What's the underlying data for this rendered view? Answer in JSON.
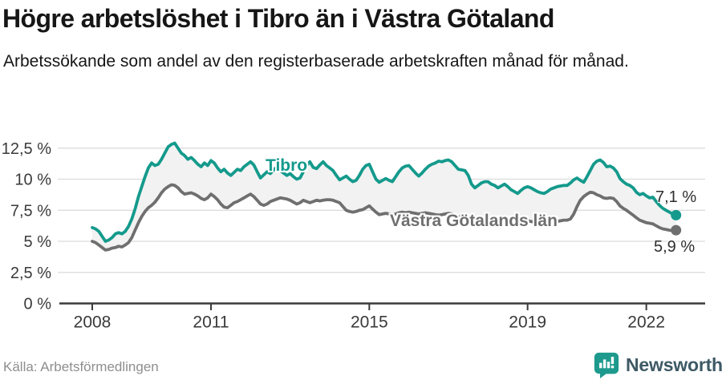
{
  "title": "Högre arbetslöshet i Tibro än i Västra Götaland",
  "subtitle": "Arbetssökande som andel av den registerbaserade arbetskraften månad för månad.",
  "source": "Källa: Arbetsförmedlingen",
  "branding": {
    "name": "Newsworthy",
    "icon": "bar-chart-speech-bubble"
  },
  "colors": {
    "accent_teal": "#149a8c",
    "line_gray": "#6f6f6f",
    "band_fill": "#f2f2f2",
    "grid": "#dcdcdc",
    "axis": "#3a3a3a",
    "text_dark": "#161616",
    "text_muted": "#8e8e8e",
    "brand_dark": "#3d5965"
  },
  "chart_data": {
    "type": "line",
    "frequency": "monthly",
    "x_start": "2008-01",
    "x_end": "2022-10",
    "x_ticks": [
      2008,
      2011,
      2015,
      2019,
      2022
    ],
    "y_ticks": [
      "0 %",
      "2,5 %",
      "5 %",
      "7,5 %",
      "10 %",
      "12,5 %"
    ],
    "y_tick_values": [
      0,
      2.5,
      5,
      7.5,
      10,
      12.5
    ],
    "ylim": [
      0,
      13.2
    ],
    "grid": "horizontal",
    "legend_position": "inline-labels",
    "band_fill_between_series": true,
    "series": [
      {
        "name": "Tibro",
        "color": "#149a8c",
        "end_label": "7,1 %",
        "end_value": 7.1,
        "values": [
          6.1,
          6.0,
          5.8,
          5.4,
          5.0,
          5.1,
          5.3,
          5.6,
          5.7,
          5.6,
          5.8,
          6.2,
          6.8,
          7.6,
          8.6,
          9.4,
          10.2,
          10.9,
          11.3,
          11.1,
          11.2,
          11.6,
          12.1,
          12.6,
          12.8,
          12.9,
          12.5,
          12.1,
          11.9,
          11.6,
          11.75,
          11.5,
          11.2,
          11.0,
          11.3,
          11.1,
          11.5,
          11.3,
          10.9,
          10.6,
          10.8,
          10.5,
          10.3,
          10.55,
          10.8,
          10.7,
          11.0,
          11.2,
          11.4,
          11.15,
          10.6,
          10.1,
          10.35,
          10.6,
          10.45,
          10.75,
          11.0,
          10.7,
          10.5,
          10.3,
          10.45,
          10.2,
          10.0,
          10.1,
          10.6,
          11.1,
          11.4,
          10.95,
          10.85,
          11.15,
          11.4,
          11.1,
          10.9,
          10.7,
          10.3,
          9.95,
          10.1,
          10.25,
          10.0,
          9.8,
          9.9,
          10.3,
          10.8,
          11.1,
          11.2,
          10.6,
          10.0,
          9.75,
          9.9,
          10.05,
          9.9,
          9.8,
          10.2,
          10.6,
          10.9,
          11.05,
          11.1,
          10.8,
          10.5,
          10.25,
          10.5,
          10.8,
          11.05,
          11.2,
          11.3,
          11.45,
          11.4,
          11.5,
          11.55,
          11.4,
          11.1,
          10.8,
          10.75,
          10.7,
          10.3,
          9.6,
          9.3,
          9.5,
          9.7,
          9.8,
          9.8,
          9.6,
          9.5,
          9.3,
          9.45,
          9.6,
          9.4,
          9.15,
          9.0,
          8.85,
          9.1,
          9.3,
          9.4,
          9.3,
          9.15,
          9.0,
          8.9,
          8.85,
          9.0,
          9.2,
          9.3,
          9.4,
          9.45,
          9.5,
          9.5,
          9.7,
          9.95,
          10.1,
          9.9,
          9.75,
          10.2,
          10.7,
          11.2,
          11.45,
          11.55,
          11.35,
          11.0,
          11.05,
          10.9,
          10.6,
          10.05,
          9.8,
          9.6,
          9.5,
          9.3,
          8.95,
          8.75,
          8.85,
          8.65,
          8.5,
          8.55,
          8.2,
          7.9,
          7.65,
          7.5,
          7.35,
          7.2,
          7.1
        ]
      },
      {
        "name": "Västra Götalands län",
        "color": "#6f6f6f",
        "end_label": "5,9 %",
        "end_value": 5.9,
        "values": [
          5.0,
          4.9,
          4.7,
          4.5,
          4.3,
          4.35,
          4.45,
          4.5,
          4.6,
          4.55,
          4.7,
          4.9,
          5.3,
          5.9,
          6.5,
          7.0,
          7.4,
          7.7,
          7.9,
          8.15,
          8.5,
          8.9,
          9.2,
          9.4,
          9.55,
          9.5,
          9.3,
          9.0,
          8.8,
          8.85,
          8.9,
          8.8,
          8.65,
          8.45,
          8.35,
          8.5,
          8.8,
          8.6,
          8.35,
          8.0,
          7.75,
          7.7,
          7.9,
          8.1,
          8.2,
          8.35,
          8.5,
          8.65,
          8.8,
          8.6,
          8.3,
          8.0,
          7.9,
          8.0,
          8.2,
          8.3,
          8.4,
          8.5,
          8.45,
          8.4,
          8.3,
          8.15,
          8.0,
          8.1,
          8.3,
          8.2,
          8.1,
          8.2,
          8.3,
          8.25,
          8.3,
          8.35,
          8.35,
          8.3,
          8.2,
          8.1,
          7.8,
          7.5,
          7.4,
          7.35,
          7.4,
          7.5,
          7.55,
          7.7,
          7.85,
          7.6,
          7.35,
          7.15,
          7.2,
          7.25,
          7.2,
          7.15,
          7.2,
          7.3,
          7.35,
          7.3,
          7.35,
          7.3,
          7.25,
          7.2,
          7.25,
          7.3,
          7.25,
          7.2,
          7.15,
          7.1,
          7.15,
          7.2,
          7.25,
          7.2,
          7.1,
          7.0,
          6.95,
          6.9,
          6.85,
          6.8,
          6.75,
          6.8,
          6.85,
          6.9,
          6.85,
          6.8,
          6.75,
          6.7,
          6.65,
          6.6,
          6.55,
          6.5,
          6.45,
          6.5,
          6.55,
          6.6,
          6.65,
          6.6,
          6.55,
          6.5,
          6.55,
          6.6,
          6.65,
          6.7,
          6.65,
          6.6,
          6.65,
          6.7,
          6.7,
          6.8,
          7.2,
          7.8,
          8.3,
          8.6,
          8.8,
          8.95,
          8.9,
          8.75,
          8.65,
          8.5,
          8.45,
          8.5,
          8.45,
          8.2,
          7.85,
          7.65,
          7.5,
          7.3,
          7.1,
          6.9,
          6.7,
          6.6,
          6.5,
          6.45,
          6.4,
          6.25,
          6.1,
          6.0,
          5.95,
          5.9,
          5.85,
          5.9
        ]
      }
    ]
  }
}
